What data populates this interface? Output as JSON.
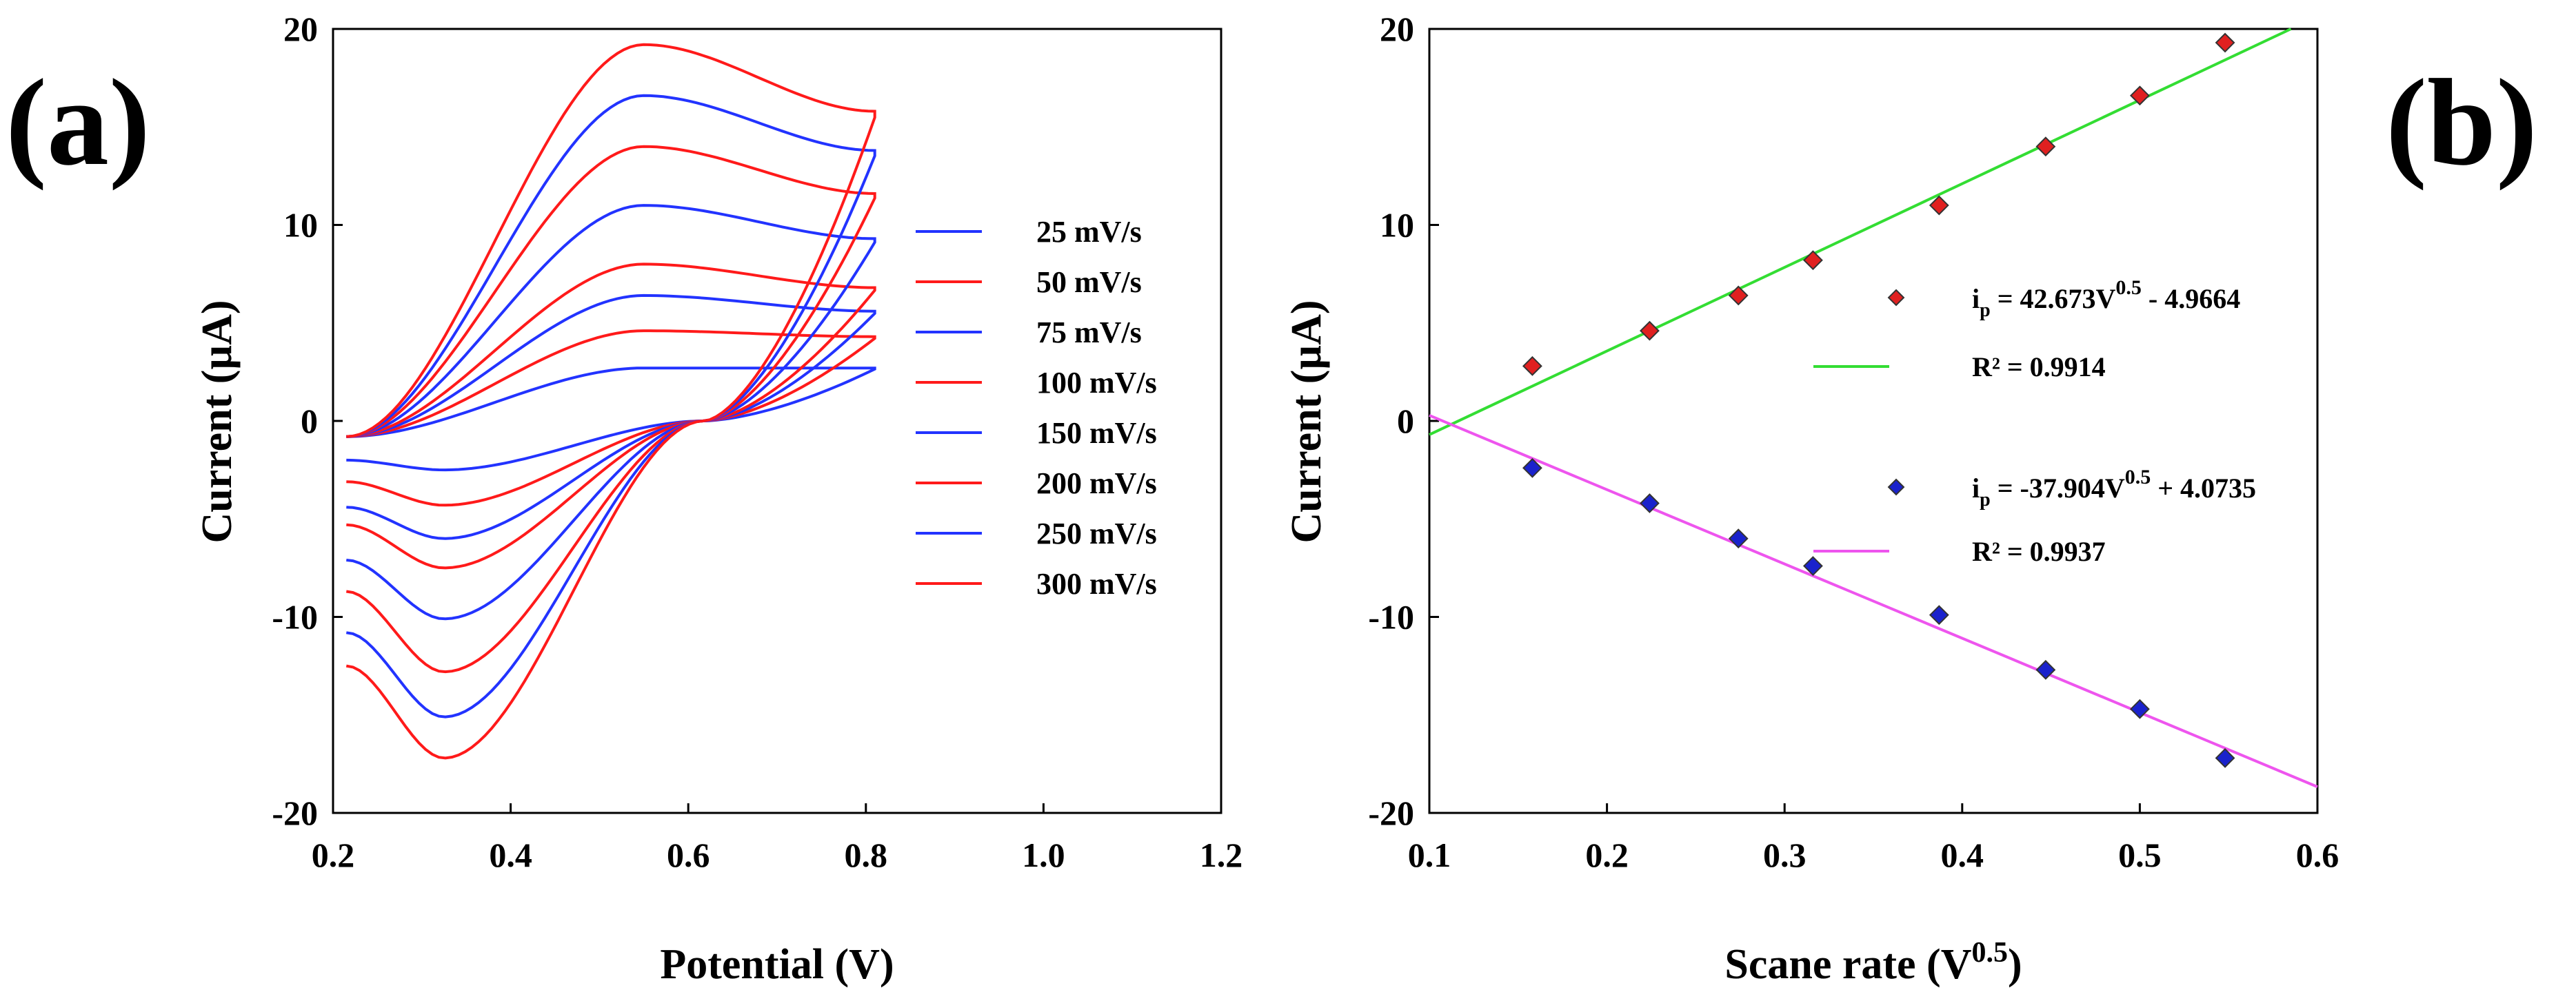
{
  "panel_labels": {
    "a": "(a)",
    "b": "(b)"
  },
  "colors": {
    "red": "#ff1a1a",
    "blue": "#2233ff",
    "green": "#33dd33",
    "magenta": "#ee55ee",
    "red_marker": "#e02020",
    "blue_marker": "#1a22cc"
  },
  "chart_data": [
    {
      "type": "line",
      "panel": "(a)",
      "xlabel": "Potential (V)",
      "ylabel": "Current (µA)",
      "xlim": [
        0.2,
        1.2
      ],
      "ylim": [
        -20,
        20
      ],
      "xticks": [
        "0.2",
        "0.4",
        "0.6",
        "0.8",
        "1.0",
        "1.2"
      ],
      "yticks": [
        "20",
        "10",
        "0",
        "-10",
        "-20"
      ],
      "legend_position": "right",
      "series": [
        {
          "name": "25 mV/s",
          "color": "blue",
          "peak_anodic": 2.7,
          "peak_cathodic": -2.5,
          "end_upper": 2.7,
          "end_lower": -2.0
        },
        {
          "name": "50 mV/s",
          "color": "red",
          "peak_anodic": 4.6,
          "peak_cathodic": -4.3,
          "end_upper": 4.3,
          "end_lower": -3.1
        },
        {
          "name": "75 mV/s",
          "color": "blue",
          "peak_anodic": 6.4,
          "peak_cathodic": -6.0,
          "end_upper": 5.6,
          "end_lower": -4.4
        },
        {
          "name": "100 mV/s",
          "color": "red",
          "peak_anodic": 8.0,
          "peak_cathodic": -7.5,
          "end_upper": 6.8,
          "end_lower": -5.3
        },
        {
          "name": "150 mV/s",
          "color": "blue",
          "peak_anodic": 11.0,
          "peak_cathodic": -10.1,
          "end_upper": 9.3,
          "end_lower": -7.1
        },
        {
          "name": "200 mV/s",
          "color": "red",
          "peak_anodic": 14.0,
          "peak_cathodic": -12.8,
          "end_upper": 11.6,
          "end_lower": -8.7
        },
        {
          "name": "250 mV/s",
          "color": "blue",
          "peak_anodic": 16.6,
          "peak_cathodic": -15.1,
          "end_upper": 13.8,
          "end_lower": -10.8
        },
        {
          "name": "300 mV/s",
          "color": "red",
          "peak_anodic": 19.2,
          "peak_cathodic": -17.2,
          "end_upper": 15.8,
          "end_lower": -12.5
        }
      ]
    },
    {
      "type": "scatter",
      "panel": "(b)",
      "xlabel": "Scane rate (V",
      "xlabel_sup": "0.5",
      "xlabel_tail": ")",
      "ylabel": "Current (µA)",
      "xlim": [
        0.1,
        0.6
      ],
      "ylim": [
        -20,
        20
      ],
      "xticks": [
        "0.1",
        "0.2",
        "0.3",
        "0.4",
        "0.5",
        "0.6"
      ],
      "yticks": [
        "20",
        "10",
        "0",
        "-10",
        "-20"
      ],
      "series": [
        {
          "marker_color": "red_marker",
          "line_color": "green",
          "x": [
            0.158,
            0.224,
            0.274,
            0.316,
            0.387,
            0.447,
            0.5,
            0.548
          ],
          "y": [
            2.8,
            4.6,
            6.4,
            8.2,
            11.0,
            14.0,
            16.6,
            19.3
          ],
          "fit": {
            "slope": 42.673,
            "intercept": -4.9664
          },
          "equation": {
            "i": "i",
            "sub": "p",
            "mid": " = 42.673V",
            "sup": "0.5",
            "tail": " - 4.9664"
          },
          "r2": "R² = 0.9914"
        },
        {
          "marker_color": "blue_marker",
          "line_color": "magenta",
          "x": [
            0.158,
            0.224,
            0.274,
            0.316,
            0.387,
            0.447,
            0.5,
            0.548
          ],
          "y": [
            -2.4,
            -4.2,
            -6.0,
            -7.4,
            -9.9,
            -12.7,
            -14.7,
            -17.2
          ],
          "fit": {
            "slope": -37.904,
            "intercept": 4.0735
          },
          "equation": {
            "i": "i",
            "sub": "p",
            "mid": " = -37.904V",
            "sup": "0.5",
            "tail": " + 4.0735"
          },
          "r2": "R² = 0.9937"
        }
      ]
    }
  ]
}
